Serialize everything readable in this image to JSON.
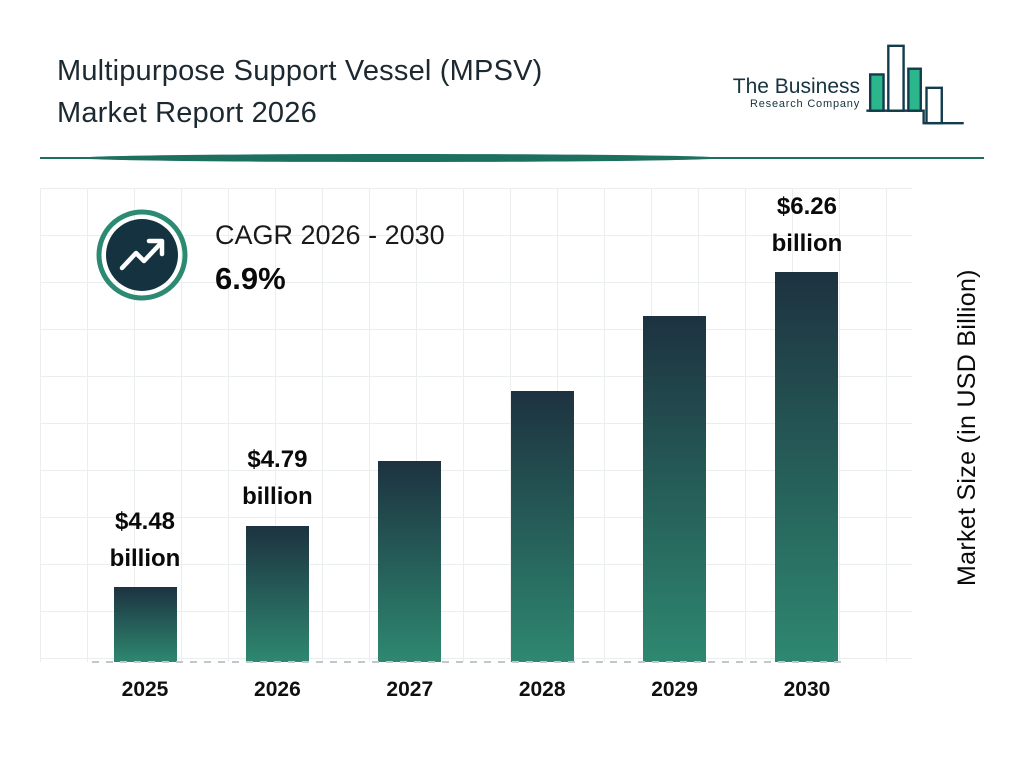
{
  "header": {
    "title_line1": "Multipurpose Support Vessel (MPSV)",
    "title_line2": "Market Report 2026"
  },
  "logo": {
    "line1": "The Business",
    "line2": "Research Company"
  },
  "cagr": {
    "label": "CAGR 2026 - 2030",
    "value": "6.9%"
  },
  "chart_data": {
    "type": "bar",
    "title": "Multipurpose Support Vessel (MPSV) Market Report 2026",
    "categories": [
      "2025",
      "2026",
      "2027",
      "2028",
      "2029",
      "2030"
    ],
    "values": [
      4.48,
      4.79,
      5.12,
      5.47,
      5.85,
      6.26
    ],
    "bar_labels": [
      "$4.48 billion",
      "$4.79 billion",
      "",
      "",
      "",
      "$6.26 billion"
    ],
    "xlabel": "",
    "ylabel": "Market Size (in USD Billion)",
    "ylim": [
      4.1,
      6.5
    ],
    "grid": true,
    "legend": "none",
    "colors": {
      "bar_top": "#1d3240",
      "bar_bottom": "#2e8870"
    }
  },
  "colors": {
    "accent_teal": "#1d6f60",
    "ring_teal": "#2c8a73",
    "circle_fill": "#14323f",
    "logo_green": "#2bb68c",
    "logo_outline": "#123c4c"
  }
}
